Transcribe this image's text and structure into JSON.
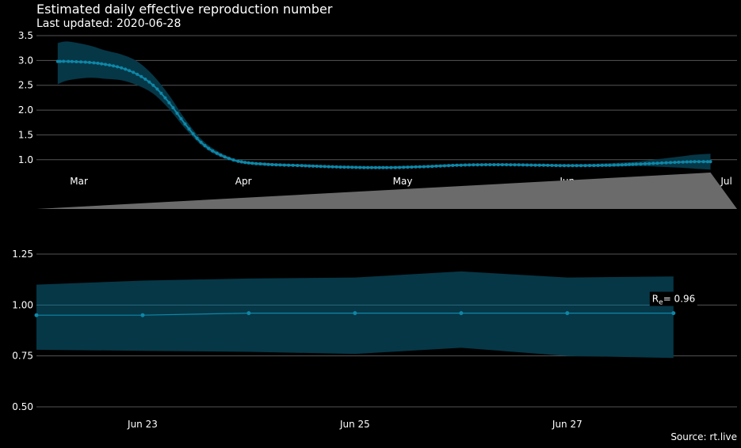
{
  "header": {
    "title": "Estimated daily effective reproduction number",
    "subtitle": "Last updated: 2020-06-28"
  },
  "footer": {
    "source": "Source: rt.live"
  },
  "colors": {
    "background": "#000000",
    "band": "#063746",
    "line": "#0e87a8",
    "grid": "#555555",
    "overview_area": "#6b6b6b"
  },
  "chart_data": [
    {
      "type": "line",
      "title": "Estimated daily effective reproduction number",
      "ylim": [
        0.55,
        3.5
      ],
      "yticks": [
        1.0,
        1.5,
        2.0,
        2.5,
        3.0,
        3.5
      ],
      "ytick_labels": [
        "1.0",
        "1.5",
        "2.0",
        "2.5",
        "3.0",
        "3.5"
      ],
      "xrange": [
        "2020-02-22",
        "2020-07-03"
      ],
      "xticks": [
        "2020-03-01",
        "2020-04-01",
        "2020-05-01",
        "2020-06-01",
        "2020-07-01"
      ],
      "xtick_labels": [
        "Mar",
        "Apr",
        "May",
        "Jun",
        "Jul"
      ],
      "grid": true,
      "series": [
        {
          "points": [
            {
              "x": "2020-02-26",
              "y": 2.98,
              "lo": 2.52,
              "hi": 3.35
            },
            {
              "x": "2020-02-28",
              "y": 2.98,
              "lo": 2.6,
              "hi": 3.38
            },
            {
              "x": "2020-03-03",
              "y": 2.96,
              "lo": 2.65,
              "hi": 3.3
            },
            {
              "x": "2020-03-06",
              "y": 2.92,
              "lo": 2.63,
              "hi": 3.2
            },
            {
              "x": "2020-03-09",
              "y": 2.85,
              "lo": 2.6,
              "hi": 3.12
            },
            {
              "x": "2020-03-12",
              "y": 2.72,
              "lo": 2.5,
              "hi": 2.98
            },
            {
              "x": "2020-03-15",
              "y": 2.5,
              "lo": 2.33,
              "hi": 2.7
            },
            {
              "x": "2020-03-18",
              "y": 2.15,
              "lo": 2.02,
              "hi": 2.3
            },
            {
              "x": "2020-03-21",
              "y": 1.72,
              "lo": 1.63,
              "hi": 1.82
            },
            {
              "x": "2020-03-24",
              "y": 1.35,
              "lo": 1.3,
              "hi": 1.42
            },
            {
              "x": "2020-03-27",
              "y": 1.13,
              "lo": 1.09,
              "hi": 1.18
            },
            {
              "x": "2020-03-31",
              "y": 0.97,
              "lo": 0.94,
              "hi": 1.0
            },
            {
              "x": "2020-04-05",
              "y": 0.91,
              "lo": 0.88,
              "hi": 0.94
            },
            {
              "x": "2020-04-12",
              "y": 0.88,
              "lo": 0.86,
              "hi": 0.91
            },
            {
              "x": "2020-04-20",
              "y": 0.85,
              "lo": 0.83,
              "hi": 0.88
            },
            {
              "x": "2020-04-28",
              "y": 0.84,
              "lo": 0.82,
              "hi": 0.87
            },
            {
              "x": "2020-05-05",
              "y": 0.86,
              "lo": 0.84,
              "hi": 0.89
            },
            {
              "x": "2020-05-12",
              "y": 0.89,
              "lo": 0.87,
              "hi": 0.92
            },
            {
              "x": "2020-05-19",
              "y": 0.9,
              "lo": 0.88,
              "hi": 0.93
            },
            {
              "x": "2020-05-26",
              "y": 0.89,
              "lo": 0.87,
              "hi": 0.92
            },
            {
              "x": "2020-06-02",
              "y": 0.88,
              "lo": 0.86,
              "hi": 0.91
            },
            {
              "x": "2020-06-09",
              "y": 0.89,
              "lo": 0.86,
              "hi": 0.93
            },
            {
              "x": "2020-06-14",
              "y": 0.91,
              "lo": 0.87,
              "hi": 0.96
            },
            {
              "x": "2020-06-18",
              "y": 0.93,
              "lo": 0.86,
              "hi": 1.01
            },
            {
              "x": "2020-06-22",
              "y": 0.95,
              "lo": 0.84,
              "hi": 1.06
            },
            {
              "x": "2020-06-25",
              "y": 0.96,
              "lo": 0.82,
              "hi": 1.1
            },
            {
              "x": "2020-06-28",
              "y": 0.96,
              "lo": 0.8,
              "hi": 1.12
            }
          ]
        }
      ],
      "overview": {
        "type": "area",
        "y_domain": [
          0,
          1
        ],
        "points": [
          {
            "x": "2020-02-22",
            "y": 0.0
          },
          {
            "x": "2020-06-28",
            "y": 1.0
          },
          {
            "x": "2020-07-03",
            "y": 0.0
          }
        ]
      }
    },
    {
      "type": "line",
      "ylim": [
        0.45,
        1.3
      ],
      "yticks": [
        0.5,
        0.75,
        1.0,
        1.25
      ],
      "ytick_labels": [
        "0.50",
        "0.75",
        "1.00",
        "1.25"
      ],
      "xrange": [
        "2020-06-22",
        "2020-06-28.3"
      ],
      "xticks": [
        "2020-06-23",
        "2020-06-25",
        "2020-06-27"
      ],
      "xtick_labels": [
        "Jun 23",
        "Jun 25",
        "Jun 27"
      ],
      "grid": true,
      "series": [
        {
          "points": [
            {
              "x": "2020-06-22",
              "y": 0.95,
              "lo": 0.78,
              "hi": 1.1
            },
            {
              "x": "2020-06-23",
              "y": 0.95,
              "lo": 0.775,
              "hi": 1.12
            },
            {
              "x": "2020-06-24",
              "y": 0.96,
              "lo": 0.77,
              "hi": 1.13
            },
            {
              "x": "2020-06-25",
              "y": 0.96,
              "lo": 0.76,
              "hi": 1.135
            },
            {
              "x": "2020-06-26",
              "y": 0.96,
              "lo": 0.79,
              "hi": 1.165
            },
            {
              "x": "2020-06-27",
              "y": 0.96,
              "lo": 0.75,
              "hi": 1.135
            },
            {
              "x": "2020-06-28",
              "y": 0.96,
              "lo": 0.74,
              "hi": 1.14
            }
          ]
        }
      ],
      "annotation": {
        "label_main": "R",
        "label_sub": "e",
        "label_value": "= 0.96"
      }
    }
  ]
}
